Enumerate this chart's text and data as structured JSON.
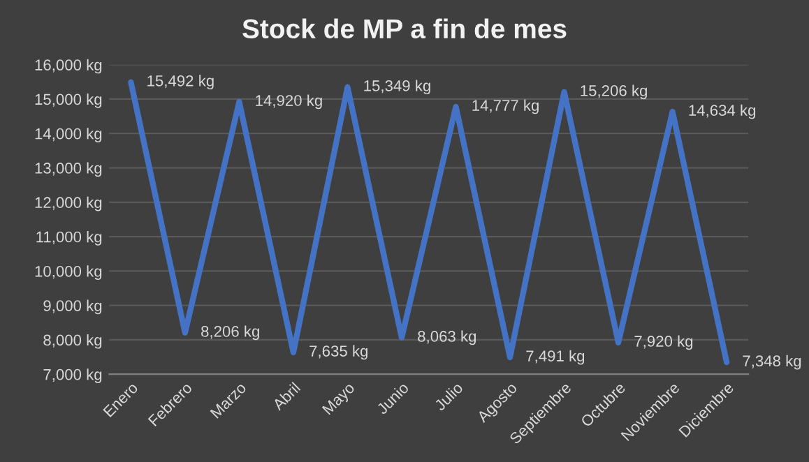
{
  "chart_data": {
    "type": "line",
    "title": "Stock de MP a fin de mes",
    "categories": [
      "Enero",
      "Febrero",
      "Marzo",
      "Abril",
      "Mayo",
      "Junio",
      "Julio",
      "Agosto",
      "Septiembre",
      "Octubre",
      "Noviembre",
      "Diciembre"
    ],
    "series": [
      {
        "color": "#4472c4",
        "values": [
          15492,
          8206,
          14920,
          7635,
          15349,
          8063,
          14777,
          7491,
          15206,
          7920,
          14634,
          7348
        ],
        "value_labels": [
          "15,492 kg",
          "8,206 kg",
          "14,920 kg",
          "7,635 kg",
          "15,349 kg",
          "8,063 kg",
          "14,777 kg",
          "7,491 kg",
          "15,206 kg",
          "7,920 kg",
          "14,634 kg",
          "7,348 kg"
        ]
      }
    ],
    "ylim": [
      7000,
      16000
    ],
    "yticks": [
      {
        "value": 7000,
        "label": "7,000 kg"
      },
      {
        "value": 8000,
        "label": "8,000 kg"
      },
      {
        "value": 9000,
        "label": "9,000 kg"
      },
      {
        "value": 10000,
        "label": "10,000 kg"
      },
      {
        "value": 11000,
        "label": "11,000 kg"
      },
      {
        "value": 12000,
        "label": "12,000 kg"
      },
      {
        "value": 13000,
        "label": "13,000 kg"
      },
      {
        "value": 14000,
        "label": "14,000 kg"
      },
      {
        "value": 15000,
        "label": "15,000 kg"
      },
      {
        "value": 16000,
        "label": "16,000 kg"
      }
    ],
    "grid": "y",
    "legend": false,
    "marker": "none",
    "line_style": "solid"
  }
}
